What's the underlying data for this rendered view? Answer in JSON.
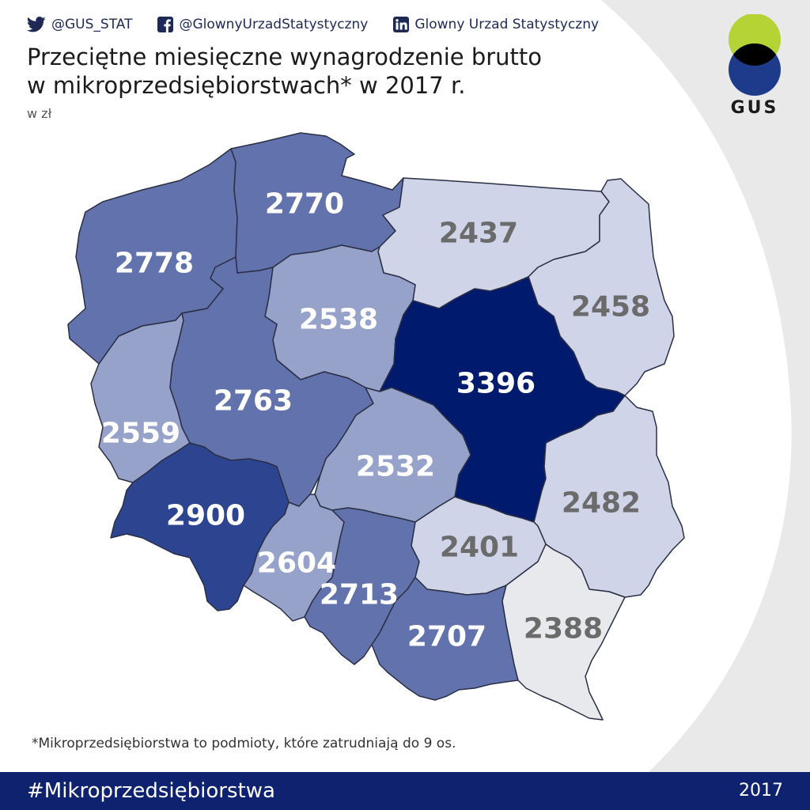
{
  "social": [
    {
      "icon": "twitter-icon",
      "label": "@GUS_STAT"
    },
    {
      "icon": "facebook-icon",
      "label": "@GlownyUrzadStatystyczny"
    },
    {
      "icon": "linkedin-icon",
      "label": "Glowny Urzad Statystyczny"
    }
  ],
  "title": {
    "line1": "Przeciętne miesięczne wynagrodzenie brutto",
    "line2": "w mikroprzedsiębiorstwach* w 2017 r."
  },
  "unit": "w zł",
  "logo": {
    "text": "GUS",
    "top_color": "#b5d334",
    "bottom_color": "#1e3a8a",
    "overlap_color": "#000000"
  },
  "colors": {
    "darkest": "#001a6e",
    "dark": "#2d4591",
    "mid_dark": "#6272ad",
    "mid": "#96a2c9",
    "light": "#cfd4e8",
    "lightest": "#e8e9ec",
    "footer": "#0f2270",
    "label_light": "#ffffff",
    "label_dark": "#6b6b6b"
  },
  "regions": [
    {
      "id": "zachodniopomorskie",
      "value": "2778"
    },
    {
      "id": "pomorskie",
      "value": "2770"
    },
    {
      "id": "warminsko-mazurskie",
      "value": "2437"
    },
    {
      "id": "podlaskie",
      "value": "2458"
    },
    {
      "id": "kujawsko-pomorskie",
      "value": "2538"
    },
    {
      "id": "lubuskie",
      "value": "2559"
    },
    {
      "id": "wielkopolskie",
      "value": "2763"
    },
    {
      "id": "mazowieckie",
      "value": "3396"
    },
    {
      "id": "lodzkie",
      "value": "2532"
    },
    {
      "id": "lubelskie",
      "value": "2482"
    },
    {
      "id": "dolnoslaskie",
      "value": "2900"
    },
    {
      "id": "opolskie",
      "value": "2604"
    },
    {
      "id": "slaskie",
      "value": "2713"
    },
    {
      "id": "swietokrzyskie",
      "value": "2401"
    },
    {
      "id": "malopolskie",
      "value": "2707"
    },
    {
      "id": "podkarpackie",
      "value": "2388"
    }
  ],
  "footnote": "*Mikroprzedsiębiorstwa to podmioty, które zatrudniają do 9 os.",
  "footer": {
    "hashtag": "#Mikroprzedsiębiorstwa",
    "year": "2017"
  }
}
